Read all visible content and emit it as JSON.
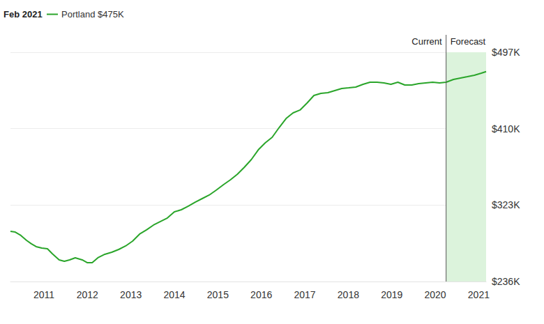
{
  "chart_data": {
    "type": "line",
    "title": "Feb 2021",
    "legend": "upper left",
    "grid": true,
    "x": [
      2010.23,
      2010.34,
      2010.47,
      2010.6,
      2010.71,
      2010.82,
      2010.95,
      2011.08,
      2011.19,
      2011.35,
      2011.47,
      2011.59,
      2011.72,
      2011.88,
      2012.0,
      2012.11,
      2012.24,
      2012.4,
      2012.56,
      2012.72,
      2012.88,
      2013.04,
      2013.2,
      2013.36,
      2013.52,
      2013.68,
      2013.84,
      2014.0,
      2014.16,
      2014.32,
      2014.48,
      2014.64,
      2014.8,
      2014.96,
      2015.13,
      2015.29,
      2015.45,
      2015.61,
      2015.77,
      2015.93,
      2016.09,
      2016.25,
      2016.41,
      2016.57,
      2016.73,
      2016.89,
      2017.05,
      2017.21,
      2017.37,
      2017.53,
      2017.69,
      2017.85,
      2018.01,
      2018.17,
      2018.34,
      2018.5,
      2018.66,
      2018.82,
      2018.98,
      2019.14,
      2019.3,
      2019.46,
      2019.62,
      2019.78,
      2019.94,
      2020.1,
      2020.25,
      2020.42,
      2020.58,
      2020.74,
      2020.9,
      2021.06,
      2021.17
    ],
    "series": [
      {
        "name": "Portland $475K",
        "color": "#2aa52a",
        "values": [
          293100,
          292300,
          288400,
          282800,
          278900,
          275700,
          274100,
          273300,
          267700,
          260600,
          259000,
          260600,
          263000,
          260600,
          257400,
          257400,
          263000,
          267000,
          269300,
          272500,
          276500,
          282000,
          290000,
          294800,
          300300,
          304300,
          308300,
          315300,
          317700,
          321700,
          326400,
          330400,
          334400,
          339900,
          346300,
          351800,
          358200,
          366100,
          374800,
          385900,
          393900,
          400200,
          411300,
          421600,
          428000,
          431200,
          439100,
          447800,
          450200,
          451000,
          453400,
          455800,
          456500,
          457300,
          460500,
          462900,
          462900,
          462100,
          460500,
          462900,
          459700,
          459700,
          461300,
          462100,
          462900,
          462100,
          462900,
          466100,
          467700,
          469200,
          470800,
          473200,
          475000
        ]
      }
    ],
    "xlim": [
      2010.23,
      2021.17
    ],
    "xticks": [
      2011,
      2012,
      2013,
      2014,
      2015,
      2016,
      2017,
      2018,
      2019,
      2020,
      2021
    ],
    "ylim": [
      236000,
      497000
    ],
    "yticks": [
      {
        "value": 236000,
        "label": "$236K"
      },
      {
        "value": 323000,
        "label": "$323K"
      },
      {
        "value": 410000,
        "label": "$410K"
      },
      {
        "value": 497000,
        "label": "$497K"
      }
    ],
    "annotations": {
      "forecast_start": 2020.25,
      "before": "Current",
      "after": "Forecast"
    }
  }
}
